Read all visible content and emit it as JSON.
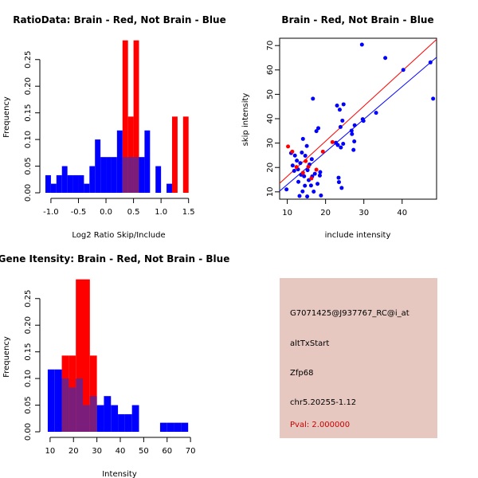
{
  "info_panel": {
    "probe_id": "G7071425@J937767_RC@i_at",
    "event_type": "altTxStart",
    "gene_name": "Zfp68",
    "location": "chr5.20255-1.12",
    "pval_label": "Pval: 2.000000",
    "background_color": "#e6c8c0",
    "pval_color": "#cc0000"
  },
  "colors": {
    "red": "#ff0000",
    "blue": "#0000ff",
    "purple": "#7b1e7b"
  },
  "chart_data": [
    {
      "id": "ratio",
      "type": "bar",
      "title": "RatioData: Brain - Red, Not Brain - Blue",
      "xlabel": "Log2 Ratio Skip/Include",
      "ylabel": "Frequency",
      "xlim": [
        -1.1,
        1.62
      ],
      "ylim": [
        0,
        0.29
      ],
      "xticks": [
        -1.0,
        -0.5,
        0.0,
        0.5,
        1.0,
        1.5
      ],
      "xtick_labels": [
        "-1.0",
        "-0.5",
        "0.0",
        "0.5",
        "1.0",
        "1.5"
      ],
      "yticks": [
        0.0,
        0.05,
        0.1,
        0.15,
        0.2,
        0.25
      ],
      "ytick_labels": [
        "0.00",
        "0.05",
        "0.10",
        "0.15",
        "0.20",
        "0.25"
      ],
      "series": [
        {
          "name": "Brain",
          "color": "red",
          "bins": [
            [
              0.3,
              0.4,
              0.286
            ],
            [
              0.4,
              0.5,
              0.143
            ],
            [
              0.5,
              0.6,
              0.286
            ],
            [
              1.2,
              1.3,
              0.143
            ],
            [
              1.4,
              1.5,
              0.143
            ]
          ]
        },
        {
          "name": "Not Brain",
          "color": "blue",
          "bins": [
            [
              -1.1,
              -1.0,
              0.033
            ],
            [
              -1.0,
              -0.9,
              0.017
            ],
            [
              -0.9,
              -0.8,
              0.033
            ],
            [
              -0.8,
              -0.7,
              0.05
            ],
            [
              -0.7,
              -0.6,
              0.033
            ],
            [
              -0.6,
              -0.5,
              0.033
            ],
            [
              -0.5,
              -0.4,
              0.033
            ],
            [
              -0.4,
              -0.3,
              0.017
            ],
            [
              -0.3,
              -0.2,
              0.05
            ],
            [
              -0.2,
              -0.1,
              0.1
            ],
            [
              -0.1,
              0.0,
              0.067
            ],
            [
              0.0,
              0.1,
              0.067
            ],
            [
              0.1,
              0.2,
              0.067
            ],
            [
              0.2,
              0.3,
              0.117
            ],
            [
              0.3,
              0.4,
              0.067
            ],
            [
              0.4,
              0.5,
              0.067
            ],
            [
              0.5,
              0.6,
              0.067
            ],
            [
              0.6,
              0.7,
              0.067
            ],
            [
              0.7,
              0.8,
              0.117
            ],
            [
              0.8,
              0.9,
              0.0
            ],
            [
              0.9,
              1.0,
              0.05
            ],
            [
              1.0,
              1.1,
              0.0
            ],
            [
              1.1,
              1.2,
              0.017
            ]
          ]
        }
      ]
    },
    {
      "id": "scatter",
      "type": "scatter",
      "title": "Brain - Red, Not Brain - Blue",
      "xlabel": "include intensity",
      "ylabel": "skip intensity",
      "xlim": [
        8,
        49
      ],
      "ylim": [
        7,
        73
      ],
      "xticks": [
        10,
        20,
        30,
        40
      ],
      "xtick_labels": [
        "10",
        "20",
        "30",
        "40"
      ],
      "yticks": [
        10,
        20,
        30,
        40,
        50,
        60,
        70
      ],
      "ytick_labels": [
        "10",
        "20",
        "30",
        "40",
        "50",
        "60",
        "70"
      ],
      "series": [
        {
          "name": "Brain",
          "color": "red",
          "points": [
            [
              10.2,
              28.6
            ],
            [
              11.3,
              26.5
            ],
            [
              12.4,
              20.2
            ],
            [
              14.1,
              17.8
            ],
            [
              14.8,
              22.6
            ],
            [
              15.5,
              20.3
            ],
            [
              16.3,
              15.5
            ],
            [
              17.6,
              19.1
            ],
            [
              19.3,
              26.5
            ],
            [
              21.8,
              30.4
            ]
          ],
          "fit": [
            [
              8,
              13.5
            ],
            [
              49,
              72.5
            ]
          ]
        },
        {
          "name": "Not Brain",
          "color": "blue",
          "points": [
            [
              9.8,
              11.0
            ],
            [
              11.0,
              25.9
            ],
            [
              11.4,
              20.8
            ],
            [
              11.8,
              18.6
            ],
            [
              12.0,
              24.9
            ],
            [
              12.5,
              22.8
            ],
            [
              12.8,
              19.2
            ],
            [
              12.9,
              14.1
            ],
            [
              13.2,
              8.3
            ],
            [
              13.4,
              21.8
            ],
            [
              13.6,
              17.0
            ],
            [
              13.8,
              26.1
            ],
            [
              14.0,
              10.2
            ],
            [
              14.1,
              31.7
            ],
            [
              14.4,
              16.4
            ],
            [
              14.6,
              12.5
            ],
            [
              14.7,
              24.8
            ],
            [
              15.1,
              28.8
            ],
            [
              15.2,
              8.1
            ],
            [
              15.3,
              18.9
            ],
            [
              15.6,
              14.8
            ],
            [
              15.8,
              21.2
            ],
            [
              16.2,
              12.6
            ],
            [
              16.4,
              23.4
            ],
            [
              16.5,
              16.3
            ],
            [
              16.7,
              48.2
            ],
            [
              16.9,
              10.1
            ],
            [
              17.2,
              17.4
            ],
            [
              17.6,
              34.9
            ],
            [
              17.9,
              13.3
            ],
            [
              18.1,
              36.1
            ],
            [
              18.5,
              16.7
            ],
            [
              18.6,
              18.1
            ],
            [
              18.8,
              8.5
            ],
            [
              22.7,
              30.1
            ],
            [
              23.0,
              45.4
            ],
            [
              23.2,
              29.2
            ],
            [
              23.4,
              15.8
            ],
            [
              23.5,
              14.0
            ],
            [
              23.7,
              43.7
            ],
            [
              23.9,
              36.6
            ],
            [
              24.0,
              28.2
            ],
            [
              24.2,
              11.6
            ],
            [
              24.4,
              39.2
            ],
            [
              24.6,
              29.7
            ],
            [
              24.7,
              45.9
            ],
            [
              26.8,
              35.1
            ],
            [
              26.9,
              33.7
            ],
            [
              27.3,
              27.2
            ],
            [
              27.5,
              30.7
            ],
            [
              27.6,
              37.3
            ],
            [
              29.5,
              70.4
            ],
            [
              29.7,
              39.8
            ],
            [
              29.9,
              39.1
            ],
            [
              33.2,
              42.4
            ],
            [
              35.6,
              64.9
            ],
            [
              40.3,
              60.0
            ],
            [
              47.4,
              63.1
            ],
            [
              48.1,
              48.2
            ]
          ],
          "fit": [
            [
              8,
              10.3
            ],
            [
              49,
              65.2
            ]
          ]
        }
      ]
    },
    {
      "id": "intensity",
      "type": "bar",
      "title": "Gene Itensity: Brain - Red, Not Brain - Blue",
      "xlabel": "Intensity",
      "ylabel": "Frequency",
      "xlim": [
        8,
        72
      ],
      "ylim": [
        0,
        0.29
      ],
      "xticks": [
        10,
        20,
        30,
        40,
        50,
        60,
        70
      ],
      "xtick_labels": [
        "10",
        "20",
        "30",
        "40",
        "50",
        "60",
        "70"
      ],
      "yticks": [
        0.0,
        0.05,
        0.1,
        0.15,
        0.2,
        0.25
      ],
      "ytick_labels": [
        "0.00",
        "0.05",
        "0.10",
        "0.15",
        "0.20",
        "0.25"
      ],
      "series": [
        {
          "name": "Brain",
          "color": "red",
          "bins": [
            [
              15,
              18,
              0.143
            ],
            [
              18,
              21,
              0.143
            ],
            [
              21,
              24,
              0.286
            ],
            [
              24,
              27,
              0.286
            ],
            [
              27,
              30,
              0.143
            ]
          ]
        },
        {
          "name": "Not Brain",
          "color": "blue",
          "bins": [
            [
              9,
              12,
              0.117
            ],
            [
              12,
              15,
              0.117
            ],
            [
              15,
              18,
              0.1
            ],
            [
              18,
              21,
              0.083
            ],
            [
              21,
              24,
              0.1
            ],
            [
              24,
              27,
              0.05
            ],
            [
              27,
              30,
              0.067
            ],
            [
              30,
              33,
              0.05
            ],
            [
              33,
              36,
              0.067
            ],
            [
              36,
              39,
              0.05
            ],
            [
              39,
              42,
              0.033
            ],
            [
              42,
              45,
              0.033
            ],
            [
              45,
              48,
              0.05
            ],
            [
              48,
              51,
              0.0
            ],
            [
              51,
              54,
              0.0
            ],
            [
              54,
              57,
              0.0
            ],
            [
              57,
              60,
              0.017
            ],
            [
              60,
              63,
              0.017
            ],
            [
              63,
              66,
              0.017
            ],
            [
              66,
              69,
              0.017
            ]
          ]
        }
      ]
    }
  ]
}
